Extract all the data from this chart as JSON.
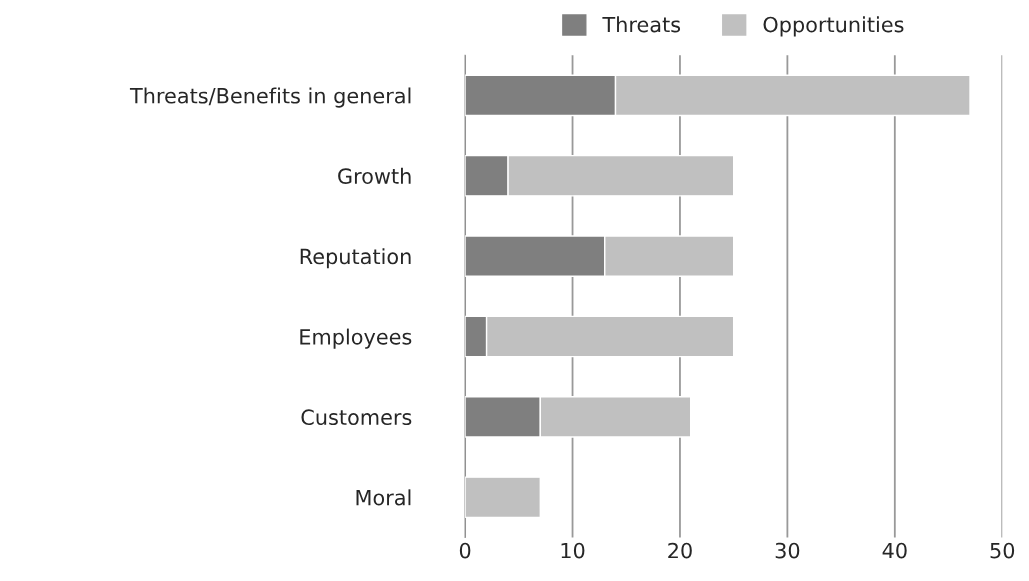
{
  "chart_data": {
    "type": "bar",
    "orientation": "horizontal",
    "stacked": true,
    "categories": [
      "Threats/Benefits in general",
      "Growth",
      "Reputation",
      "Employees",
      "Customers",
      "Moral"
    ],
    "series": [
      {
        "name": "Threats",
        "color": "#7f7f7f",
        "values": [
          14,
          4,
          13,
          2,
          7,
          0
        ]
      },
      {
        "name": "Opportunities",
        "color": "#c0c0c0",
        "values": [
          33,
          21,
          12,
          23,
          14,
          7
        ]
      }
    ],
    "xlim": [
      0,
      50
    ],
    "xticks": [
      0,
      10,
      20,
      30,
      40,
      50
    ],
    "grid": "x",
    "legend": "top"
  }
}
